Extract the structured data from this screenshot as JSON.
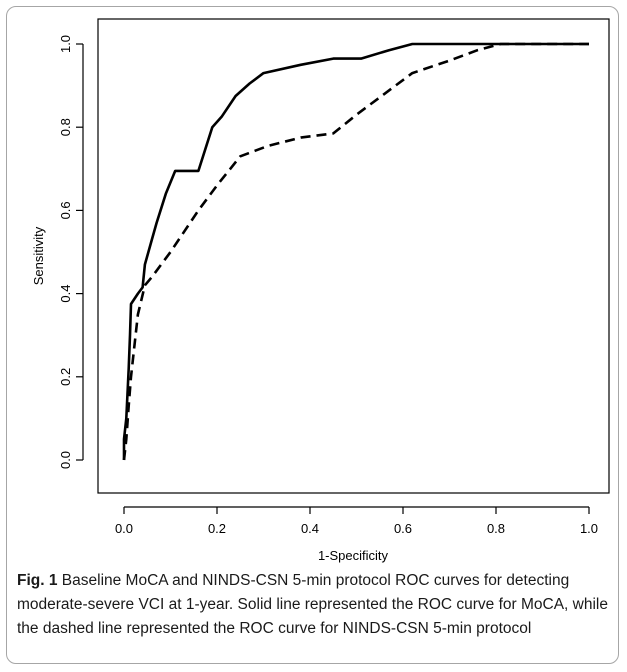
{
  "chart_data": {
    "type": "line",
    "title": "",
    "xlabel": "1-Specificity",
    "ylabel": "Sensitivity",
    "xlim": [
      0,
      1
    ],
    "ylim": [
      0,
      1
    ],
    "xticks": [
      "0.0",
      "0.2",
      "0.4",
      "0.6",
      "0.8",
      "1.0"
    ],
    "yticks": [
      "0.0",
      "0.2",
      "0.4",
      "0.6",
      "0.8",
      "1.0"
    ],
    "grid": false,
    "legend": "none",
    "series": [
      {
        "style": "solid",
        "color": "#000000",
        "points": [
          [
            0,
            0
          ],
          [
            0,
            0.05
          ],
          [
            0.005,
            0.1
          ],
          [
            0.01,
            0.22
          ],
          [
            0.013,
            0.3
          ],
          [
            0.015,
            0.375
          ],
          [
            0.03,
            0.4
          ],
          [
            0.04,
            0.415
          ],
          [
            0.045,
            0.47
          ],
          [
            0.06,
            0.53
          ],
          [
            0.07,
            0.57
          ],
          [
            0.09,
            0.64
          ],
          [
            0.11,
            0.695
          ],
          [
            0.16,
            0.695
          ],
          [
            0.19,
            0.8
          ],
          [
            0.21,
            0.825
          ],
          [
            0.24,
            0.875
          ],
          [
            0.27,
            0.905
          ],
          [
            0.3,
            0.93
          ],
          [
            0.38,
            0.95
          ],
          [
            0.45,
            0.965
          ],
          [
            0.51,
            0.965
          ],
          [
            0.57,
            0.985
          ],
          [
            0.62,
            1.0
          ],
          [
            0.78,
            1.0
          ],
          [
            1.0,
            1.0
          ]
        ]
      },
      {
        "style": "dashed",
        "color": "#000000",
        "points": [
          [
            0,
            0
          ],
          [
            0.005,
            0.05
          ],
          [
            0.01,
            0.13
          ],
          [
            0.015,
            0.2
          ],
          [
            0.02,
            0.25
          ],
          [
            0.025,
            0.3
          ],
          [
            0.03,
            0.35
          ],
          [
            0.045,
            0.42
          ],
          [
            0.06,
            0.44
          ],
          [
            0.1,
            0.5
          ],
          [
            0.16,
            0.6
          ],
          [
            0.2,
            0.66
          ],
          [
            0.25,
            0.73
          ],
          [
            0.31,
            0.755
          ],
          [
            0.38,
            0.775
          ],
          [
            0.45,
            0.785
          ],
          [
            0.5,
            0.83
          ],
          [
            0.56,
            0.88
          ],
          [
            0.62,
            0.93
          ],
          [
            0.7,
            0.96
          ],
          [
            0.76,
            0.985
          ],
          [
            0.81,
            1.0
          ],
          [
            0.9,
            1.0
          ],
          [
            1.0,
            1.0
          ]
        ]
      }
    ]
  },
  "caption": {
    "label": "Fig. 1",
    "text": "Baseline MoCA and NINDS-CSN 5-min protocol ROC curves for detecting moderate-severe VCI at 1-year. Solid line represented the ROC curve for MoCA, while the dashed line represented the ROC curve for NINDS-CSN 5-min protocol"
  }
}
